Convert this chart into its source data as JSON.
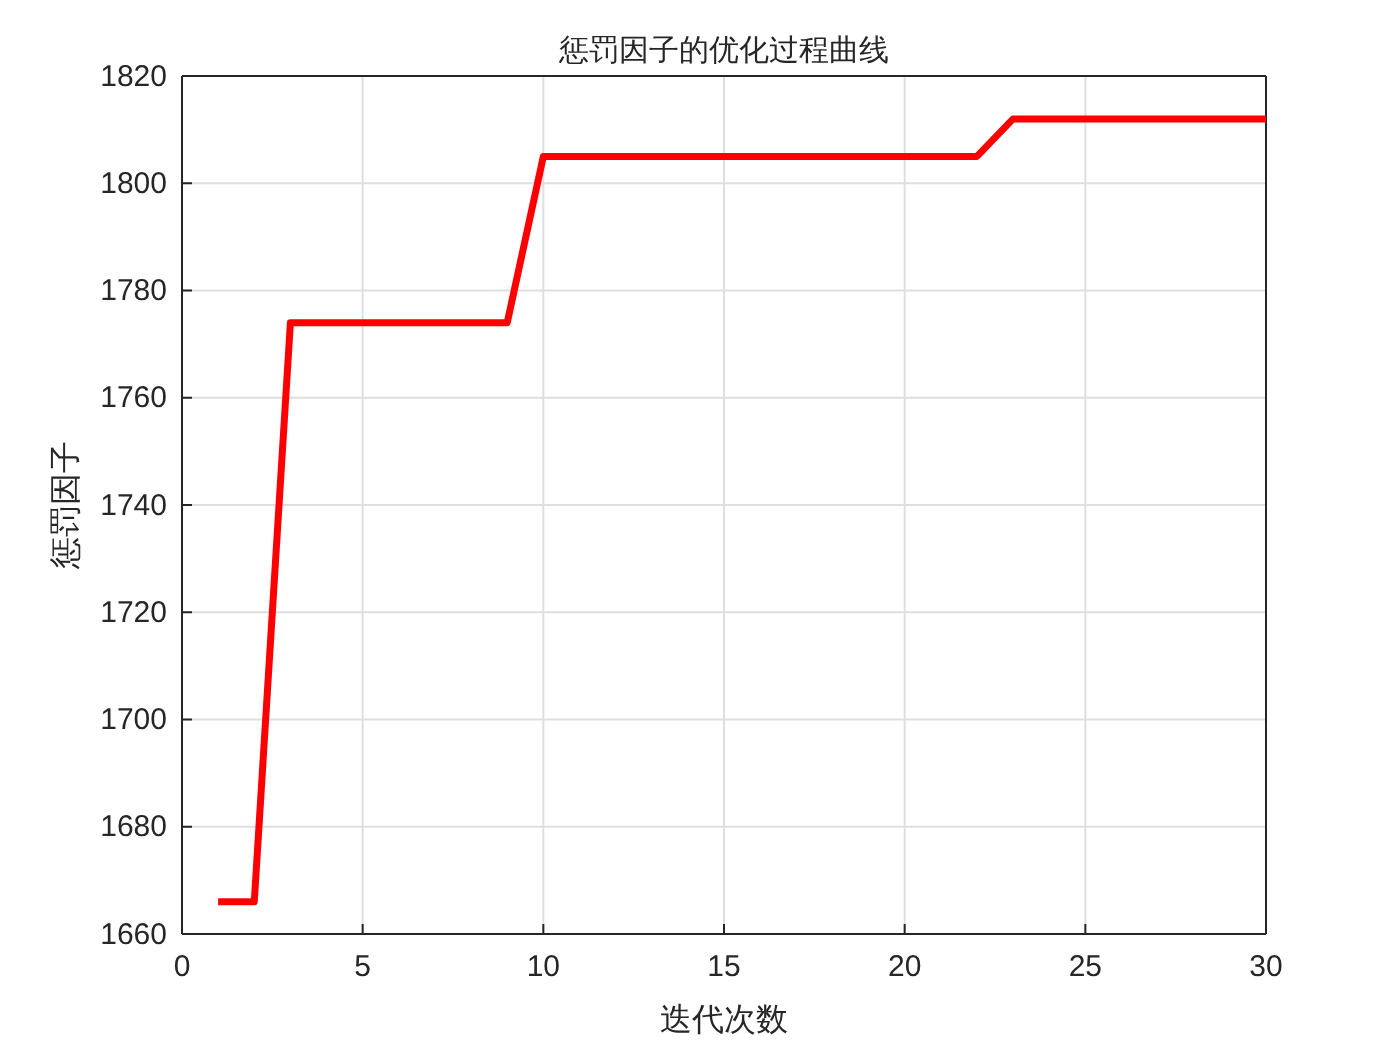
{
  "chart_data": {
    "type": "line",
    "title": "惩罚因子的优化过程曲线",
    "xlabel": "迭代次数",
    "ylabel": "惩罚因子",
    "x": [
      1,
      2,
      3,
      4,
      5,
      6,
      7,
      8,
      9,
      10,
      11,
      12,
      13,
      14,
      15,
      16,
      17,
      18,
      19,
      20,
      21,
      22,
      23,
      24,
      25,
      26,
      27,
      28,
      29,
      30
    ],
    "series": [
      {
        "color": "#ff0000",
        "values": [
          1666,
          1666,
          1774,
          1774,
          1774,
          1774,
          1774,
          1774,
          1774,
          1805,
          1805,
          1805,
          1805,
          1805,
          1805,
          1805,
          1805,
          1805,
          1805,
          1805,
          1805,
          1805,
          1812,
          1812,
          1812,
          1812,
          1812,
          1812,
          1812,
          1812
        ]
      }
    ],
    "xlim": [
      0,
      30
    ],
    "xticks": [
      0,
      5,
      10,
      15,
      20,
      25,
      30
    ],
    "ylim": [
      1660,
      1820
    ],
    "yticks": [
      1660,
      1680,
      1700,
      1720,
      1740,
      1760,
      1780,
      1800,
      1820
    ],
    "grid": true,
    "marker": "none",
    "line_style": "solid"
  }
}
